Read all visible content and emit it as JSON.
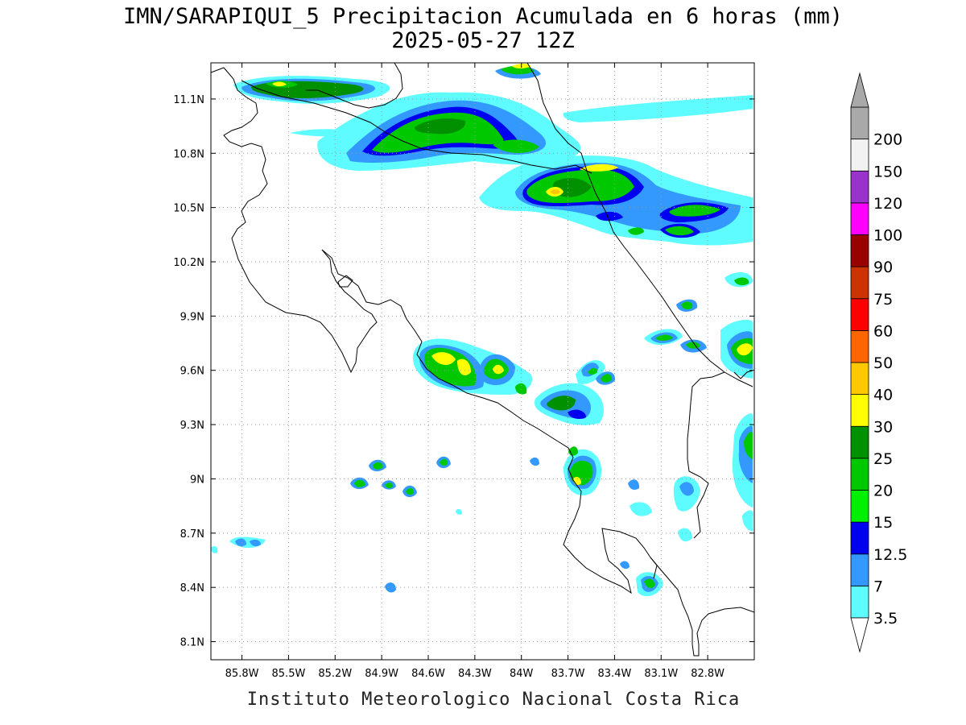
{
  "title": "IMN/SARAPIQUI_5 Precipitacion Acumulada en 6 horas (mm)",
  "subtitle": "2025-05-27 12Z",
  "footer": "Instituto Meteorologico Nacional Costa Rica",
  "map": {
    "lon_range": [
      -86.0,
      -82.5
    ],
    "lat_range": [
      8.0,
      11.3
    ],
    "lon_ticks": [
      "85.8W",
      "85.5W",
      "85.2W",
      "84.9W",
      "84.6W",
      "84.3W",
      "84W",
      "83.7W",
      "83.4W",
      "83.1W",
      "82.8W"
    ],
    "lat_ticks": [
      "11.1N",
      "10.8N",
      "10.5N",
      "10.2N",
      "9.9N",
      "9.6N",
      "9.3N",
      "9N",
      "8.7N",
      "8.4N",
      "8.1N"
    ],
    "grid": true
  },
  "legend": {
    "levels": [
      "3.5",
      "7",
      "12.5",
      "15",
      "20",
      "25",
      "30",
      "40",
      "50",
      "60",
      "75",
      "90",
      "100",
      "120",
      "150",
      "200"
    ],
    "colors": [
      "#5efcff",
      "#3399ff",
      "#0000f0",
      "#00f000",
      "#00c800",
      "#009000",
      "#ffff00",
      "#ffc800",
      "#ff6600",
      "#ff0000",
      "#cc3300",
      "#990000",
      "#ff00ff",
      "#9933cc",
      "#f2f2f2",
      "#a9a9a9"
    ]
  }
}
